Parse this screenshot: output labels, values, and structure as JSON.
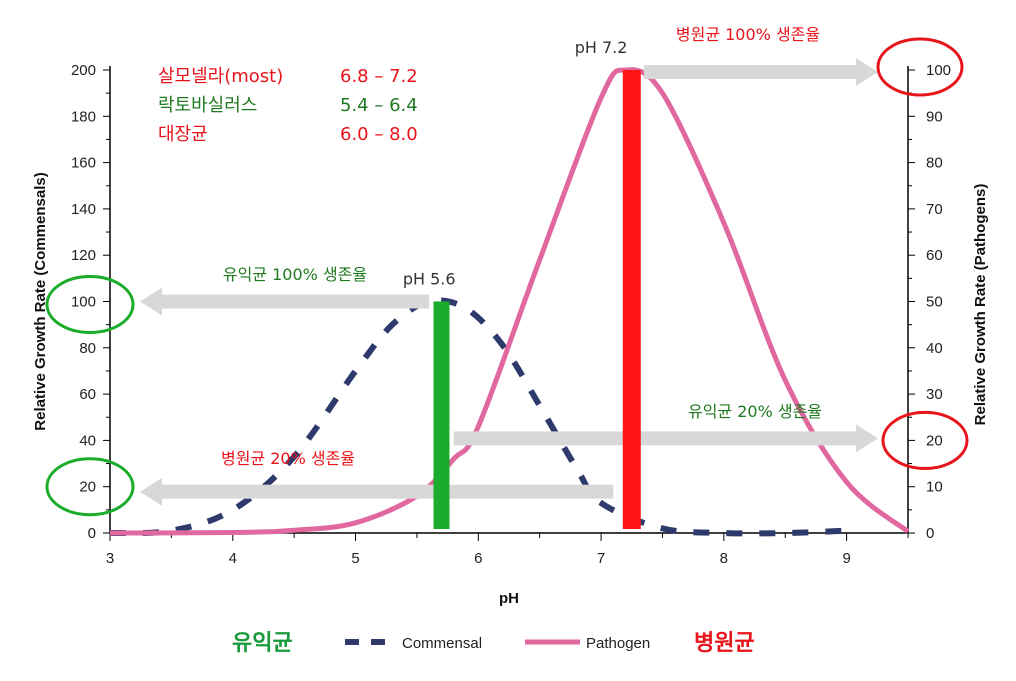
{
  "chart_data": {
    "type": "line",
    "xlabel": "pH",
    "ylabel_left": "Relative Growth Rate (Commensals)",
    "ylabel_right": "Relative Growth Rate (Pathogens)",
    "xlim": [
      3,
      9.5
    ],
    "ylim_left": [
      0,
      200
    ],
    "ylim_right": [
      0,
      100
    ],
    "x_ticks": [
      "3",
      "4",
      "5",
      "6",
      "7",
      "8",
      "9"
    ],
    "y_left_ticks": [
      "0",
      "20",
      "40",
      "60",
      "80",
      "100",
      "120",
      "140",
      "160",
      "180",
      "200"
    ],
    "y_right_ticks": [
      "0",
      "10",
      "20",
      "30",
      "40",
      "50",
      "60",
      "70",
      "80",
      "90",
      "100"
    ],
    "series": [
      {
        "name": "Commensal",
        "axis": "left",
        "style": "dashed",
        "color": "#2d3a6b",
        "x": [
          3.0,
          3.5,
          4.0,
          4.5,
          5.0,
          5.3,
          5.6,
          5.9,
          6.2,
          6.5,
          6.8,
          7.0,
          7.5,
          8.0,
          8.5,
          9.0
        ],
        "y": [
          0,
          1,
          10,
          33,
          70,
          90,
          100,
          97,
          81,
          55,
          28,
          13,
          2,
          0,
          0,
          1
        ]
      },
      {
        "name": "Pathogen",
        "axis": "right",
        "style": "solid",
        "color": "#e0689f",
        "x": [
          3.0,
          4.0,
          4.5,
          5.0,
          5.5,
          5.8,
          6.0,
          6.5,
          7.0,
          7.2,
          7.5,
          8.0,
          8.5,
          9.0,
          9.5
        ],
        "y": [
          0,
          0.1,
          0.6,
          2.2,
          8,
          16,
          23,
          59,
          94,
          100,
          95,
          67,
          33,
          11,
          0.3
        ]
      }
    ],
    "bars": [
      {
        "label": "pH 5.6",
        "x": 5.7,
        "height_left": 100,
        "color": "#1aac2a"
      },
      {
        "label": "pH 7.2",
        "x": 7.25,
        "height_left": 200,
        "color": "#ff1414"
      }
    ],
    "annotations": {
      "commensal_100": "유익균 100% 생존율",
      "pathogen_100": "병원균 100% 생존율",
      "commensal_20": "유익균 20% 생존율",
      "pathogen_20": "병원균 20% 생존율"
    },
    "ph_ranges": [
      {
        "name": "살모넬라(most)",
        "range": "6.8 – 7.2",
        "color": "#e8141b"
      },
      {
        "name": "락토바실러스",
        "range": "5.4 – 6.4",
        "color": "#1f7a1f"
      },
      {
        "name": "대장균",
        "range": "6.0 – 8.0",
        "color": "#e8141b"
      }
    ],
    "legend": {
      "left_label": "유익균",
      "commensal": "Commensal",
      "pathogen": "Pathogen",
      "right_label": "병원균"
    },
    "circle_colors": {
      "green": "#1aac2a",
      "red": "#e8141b"
    },
    "arrow_color": "#d8d8d8"
  }
}
